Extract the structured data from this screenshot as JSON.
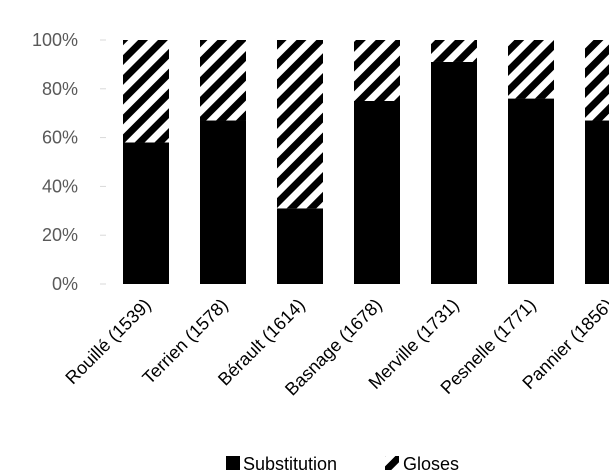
{
  "chart_data": {
    "type": "bar",
    "stacked": true,
    "categories": [
      "Rouillé (1539)",
      "Terrien (1578)",
      "Bérault (1614)",
      "Basnage (1678)",
      "Merville (1731)",
      "Pesnelle (1771)",
      "Pannier (1856)"
    ],
    "series": [
      {
        "name": "Substitution",
        "values": [
          58,
          67,
          31,
          75,
          91,
          76,
          67
        ],
        "color": "#000000",
        "pattern": "solid"
      },
      {
        "name": "Gloses",
        "values": [
          42,
          33,
          69,
          25,
          9,
          24,
          33
        ],
        "color": "#000000",
        "pattern": "diagonal-stripes"
      }
    ],
    "yticks": [
      "0%",
      "20%",
      "40%",
      "60%",
      "80%",
      "100%"
    ],
    "ylim": [
      0,
      100
    ],
    "grid": false,
    "legend": "bottom"
  },
  "legend": {
    "items": [
      "Substitution",
      "Gloses"
    ]
  }
}
